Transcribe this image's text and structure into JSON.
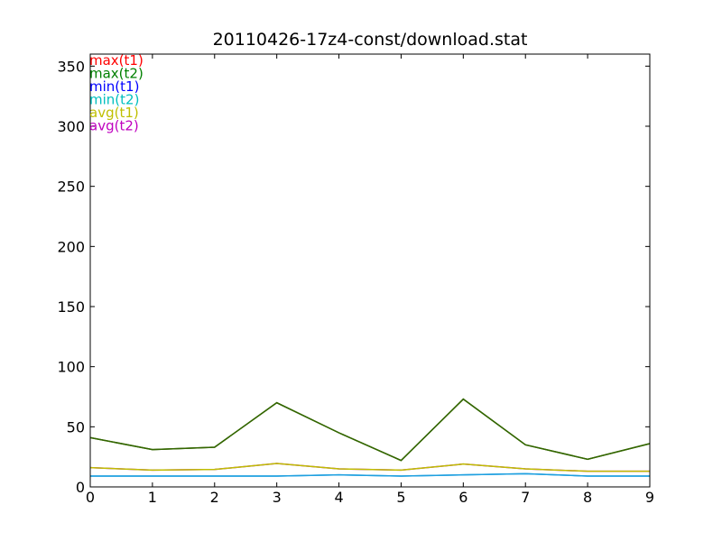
{
  "chart_data": {
    "type": "line",
    "title": "20110426-17z4-const/download.stat",
    "xlabel": "",
    "ylabel": "",
    "xlim": [
      0,
      9
    ],
    "ylim": [
      0,
      360
    ],
    "x_ticks": [
      "0",
      "1",
      "2",
      "3",
      "4",
      "5",
      "6",
      "7",
      "8",
      "9"
    ],
    "y_ticks": [
      "0",
      "50",
      "100",
      "150",
      "200",
      "250",
      "300",
      "350"
    ],
    "legend_position": "top-left",
    "x": [
      0,
      1,
      2,
      3,
      4,
      5,
      6,
      7,
      8,
      9
    ],
    "series": [
      {
        "name": "max(t1)",
        "color": "#ff0000",
        "values": [
          41,
          31,
          33,
          70,
          45,
          22,
          73,
          35,
          23,
          36
        ]
      },
      {
        "name": "max(t2)",
        "color": "#008000",
        "values": [
          41,
          31,
          33,
          70,
          45,
          22,
          73,
          35,
          23,
          36
        ]
      },
      {
        "name": "min(t1)",
        "color": "#0000ff",
        "values": [
          9,
          9,
          9,
          9,
          10,
          9,
          10,
          11,
          9,
          9
        ]
      },
      {
        "name": "min(t2)",
        "color": "#00bfbf",
        "values": [
          9,
          9,
          9,
          9,
          10,
          9,
          10,
          11,
          9,
          9
        ]
      },
      {
        "name": "avg(t1)",
        "color": "#bfbf00",
        "values": [
          16,
          14,
          14.5,
          19.5,
          15,
          14,
          19,
          15,
          13,
          13
        ]
      },
      {
        "name": "avg(t2)",
        "color": "#bf00bf",
        "values": [
          16,
          14,
          14.5,
          19.5,
          15,
          14,
          19,
          15,
          13,
          13
        ]
      }
    ]
  }
}
